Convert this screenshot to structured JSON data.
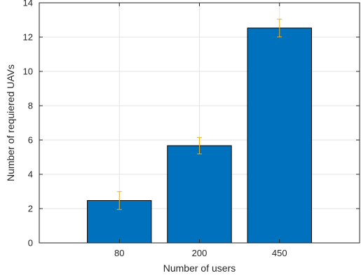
{
  "chart_data": {
    "type": "bar",
    "title": "",
    "xlabel": "Number of users",
    "ylabel": "Number of requiered UAVs",
    "categories": [
      "80",
      "200",
      "450"
    ],
    "values": [
      2.47,
      5.67,
      12.53
    ],
    "errors": [
      0.52,
      0.48,
      0.52
    ],
    "ylim": [
      0,
      14
    ],
    "yticks": [
      "0",
      "2",
      "4",
      "6",
      "8",
      "10",
      "12",
      "14"
    ],
    "grid": true,
    "colors": {
      "bar_fill": "#0072BD",
      "bar_edge": "#000000",
      "error_bar": "#EDB120",
      "grid": "#e3e3e3",
      "axis": "#262626"
    }
  }
}
